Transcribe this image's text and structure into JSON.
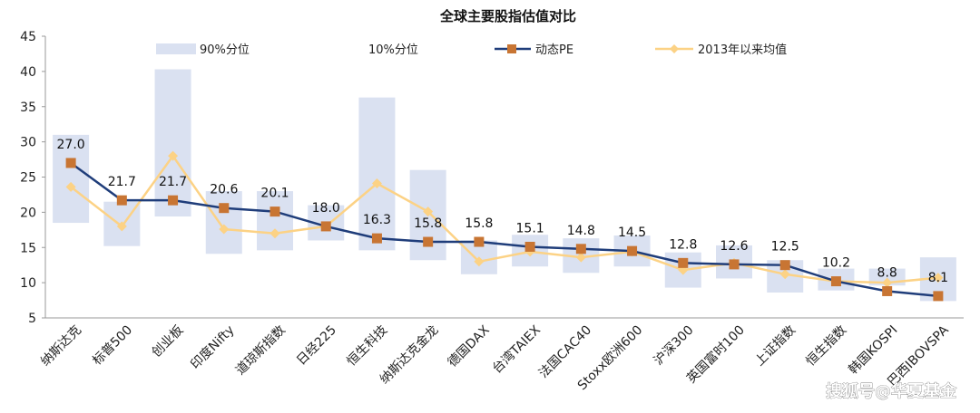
{
  "chart_data": {
    "type": "bar-line",
    "title": "全球主要股指估值对比",
    "ylim": [
      5,
      45
    ],
    "yticks": [
      5,
      10,
      15,
      20,
      25,
      30,
      35,
      40,
      45
    ],
    "grid": false,
    "legend_position": "top",
    "categories": [
      "纳斯达克",
      "标普500",
      "创业板",
      "印度Nifty",
      "道琼斯指数",
      "日经225",
      "恒生科技",
      "纳斯达克金龙",
      "德国DAX",
      "台湾TAIEX",
      "法国CAC40",
      "Stoxx欧洲600",
      "沪深300",
      "英国富时100",
      "上证指数",
      "恒生指数",
      "韩国KOSPI",
      "巴西IBOVSPA"
    ],
    "series": [
      {
        "name": "90%分位",
        "type": "bar-range-top",
        "color": "#dae1f1",
        "values": [
          31.0,
          21.5,
          40.3,
          23.0,
          23.0,
          21.0,
          36.3,
          26.0,
          16.0,
          16.8,
          16.3,
          16.7,
          14.3,
          15.3,
          13.2,
          12.0,
          12.0,
          13.6
        ]
      },
      {
        "name": "10%分位",
        "type": "bar-range-bottom",
        "color": "#ffffff",
        "values": [
          18.5,
          15.2,
          19.4,
          14.1,
          14.6,
          16.0,
          14.6,
          13.2,
          11.2,
          12.3,
          11.4,
          12.3,
          9.3,
          10.6,
          8.6,
          8.9,
          9.6,
          7.4
        ]
      },
      {
        "name": "动态PE",
        "type": "line",
        "color": "#1f3d7a",
        "marker_color": "#c87533",
        "values": [
          27.0,
          21.7,
          21.7,
          20.6,
          20.1,
          18.0,
          16.3,
          15.8,
          15.8,
          15.1,
          14.8,
          14.5,
          12.8,
          12.6,
          12.5,
          10.2,
          8.8,
          8.1
        ]
      },
      {
        "name": "2013年以来均值",
        "type": "line",
        "color": "#fcd285",
        "values": [
          23.6,
          18.0,
          28.0,
          17.6,
          17.0,
          18.0,
          24.1,
          20.1,
          13.0,
          14.4,
          13.6,
          14.4,
          11.8,
          12.8,
          11.2,
          10.2,
          10.0,
          10.7
        ]
      }
    ],
    "data_labels": [
      "27.0",
      "21.7",
      "21.7",
      "20.6",
      "20.1",
      "18.0",
      "16.3",
      "15.8",
      "15.8",
      "15.1",
      "14.8",
      "14.5",
      "12.8",
      "12.6",
      "12.5",
      "10.2",
      "8.8",
      "8.1"
    ]
  },
  "watermark": "搜狐号@华夏基金"
}
